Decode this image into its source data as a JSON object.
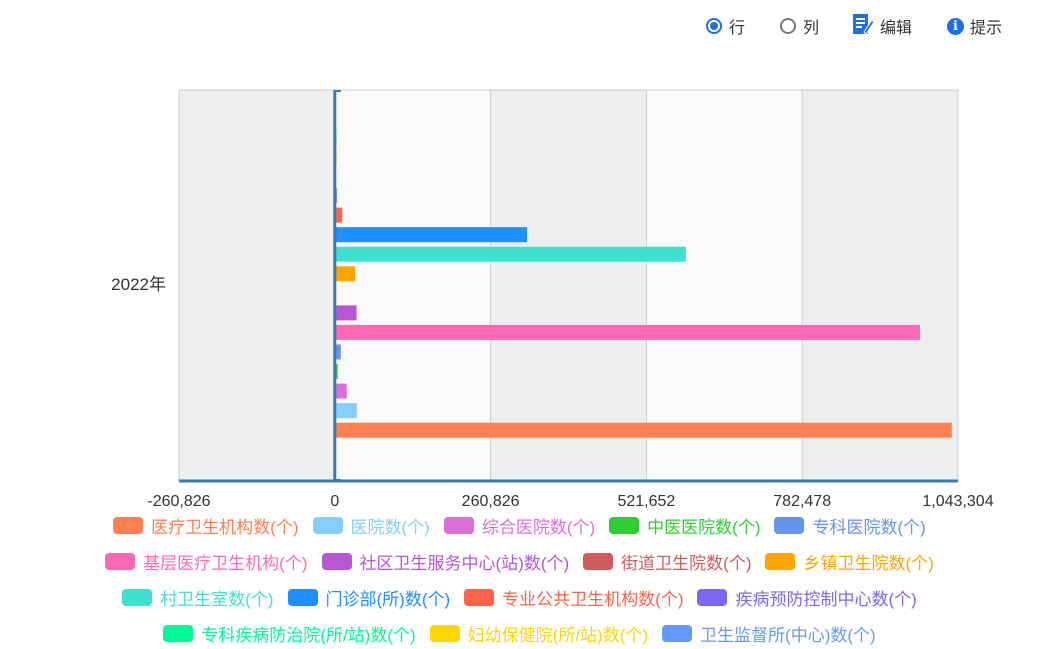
{
  "toolbar": {
    "row_label": "行",
    "col_label": "列",
    "edit_label": "编辑",
    "tip_label": "提示",
    "selected": "row"
  },
  "chart_data": {
    "type": "bar",
    "orientation": "horizontal",
    "categories": [
      "2022年"
    ],
    "xlim": [
      -260826,
      1043304
    ],
    "x_ticks": [
      "-260,826",
      "0",
      "260,826",
      "521,652",
      "782,478",
      "1,043,304"
    ],
    "tick_values": [
      -260826,
      0,
      260826,
      521652,
      782478,
      1043304
    ],
    "series": [
      {
        "name": "医疗卫生机构数(个)",
        "values": [
          1032918
        ],
        "color": "#ff7f50"
      },
      {
        "name": "医院数(个)",
        "values": [
          36976
        ],
        "color": "#87cefa"
      },
      {
        "name": "综合医院数(个)",
        "values": [
          20000
        ],
        "color": "#da70d6"
      },
      {
        "name": "中医医院数(个)",
        "values": [
          4779
        ],
        "color": "#32cd32"
      },
      {
        "name": "专科医院数(个)",
        "values": [
          10000
        ],
        "color": "#6495ed"
      },
      {
        "name": "基层医疗卫生机构(个)",
        "values": [
          979768
        ],
        "color": "#ff69b4"
      },
      {
        "name": "社区卫生服务中心(站)数(个)",
        "values": [
          36448
        ],
        "color": "#ba55d3"
      },
      {
        "name": "街道卫生院数(个)",
        "values": [
          500
        ],
        "color": "#cd5c5c"
      },
      {
        "name": "乡镇卫生院数(个)",
        "values": [
          33917
        ],
        "color": "#ffa500"
      },
      {
        "name": "村卫生室数(个)",
        "values": [
          587749
        ],
        "color": "#40e0d0"
      },
      {
        "name": "门诊部(所)数(个)",
        "values": [
          321796
        ],
        "color": "#1e90ff"
      },
      {
        "name": "专业公共卫生机构数(个)",
        "values": [
          12436
        ],
        "color": "#ff6347"
      },
      {
        "name": "疾病预防控制中心数(个)",
        "values": [
          3386
        ],
        "color": "#7b68ee"
      },
      {
        "name": "专科疾病防治院(所/站)数(个)",
        "values": [
          800
        ],
        "color": "#00fa9a"
      },
      {
        "name": "妇幼保健院(所/站)数(个)",
        "values": [
          3031
        ],
        "color": "#ffd700"
      },
      {
        "name": "卫生监督所(中心)数(个)",
        "values": [
          2800
        ],
        "color": "#6699ff"
      }
    ],
    "legend_rows": [
      [
        0,
        1,
        2,
        3,
        4
      ],
      [
        5,
        6,
        7,
        8
      ],
      [
        9,
        10,
        11,
        12
      ],
      [
        13,
        14,
        15
      ]
    ],
    "grid": true,
    "legend_position": "bottom"
  }
}
